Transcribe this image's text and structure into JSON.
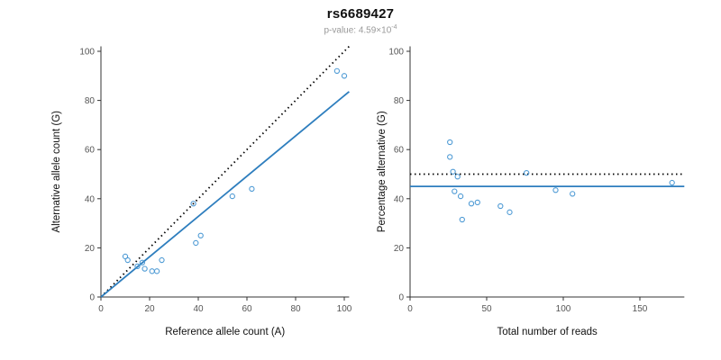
{
  "header": {
    "title": "rs6689427",
    "p_label": "p-value: 4.59×10",
    "p_exponent": "-4"
  },
  "colors": {
    "axis": "#333333",
    "point": "#4f9bd5",
    "fit_line": "#2e7ebe",
    "reference_line": "#000000"
  },
  "chart_data": [
    {
      "type": "scatter",
      "xlabel": "Reference allele count (A)",
      "ylabel": "Alternative allele count (G)",
      "xlim": [
        0,
        102
      ],
      "ylim": [
        0,
        102
      ],
      "xticks": [
        0,
        20,
        40,
        60,
        80,
        100
      ],
      "yticks": [
        0,
        20,
        40,
        60,
        80,
        100
      ],
      "grid": false,
      "point_color": "#4f9bd5",
      "points": [
        [
          10,
          16.5
        ],
        [
          11,
          15
        ],
        [
          15,
          12.5
        ],
        [
          17,
          14
        ],
        [
          18,
          11.5
        ],
        [
          21,
          10.5
        ],
        [
          23,
          10.5
        ],
        [
          25,
          15
        ],
        [
          38,
          38
        ],
        [
          39,
          22
        ],
        [
          41,
          25
        ],
        [
          54,
          41
        ],
        [
          62,
          44
        ],
        [
          97,
          92
        ],
        [
          100,
          90
        ]
      ],
      "lines": [
        {
          "name": "identity",
          "style": "dotted",
          "color": "#000000",
          "from": [
            0,
            0
          ],
          "to": [
            102,
            102
          ]
        },
        {
          "name": "fit",
          "style": "solid",
          "color": "#2e7ebe",
          "from": [
            0,
            0
          ],
          "to": [
            102,
            83.6
          ]
        }
      ]
    },
    {
      "type": "scatter",
      "xlabel": "Total number of reads",
      "ylabel": "Percentage alternative (G)",
      "xlim": [
        0,
        179
      ],
      "ylim": [
        0,
        102
      ],
      "xticks": [
        0,
        50,
        100,
        150
      ],
      "yticks": [
        0,
        20,
        40,
        60,
        80,
        100
      ],
      "grid": false,
      "point_color": "#4f9bd5",
      "points": [
        [
          26,
          63
        ],
        [
          26,
          57
        ],
        [
          28,
          51
        ],
        [
          31,
          49
        ],
        [
          29,
          43
        ],
        [
          33,
          41
        ],
        [
          34,
          31.5
        ],
        [
          40,
          38
        ],
        [
          44,
          38.5
        ],
        [
          59,
          37
        ],
        [
          65,
          34.5
        ],
        [
          76,
          50.5
        ],
        [
          95,
          43.5
        ],
        [
          106,
          42
        ],
        [
          171,
          46.5
        ]
      ],
      "lines": [
        {
          "name": "expected-50pct",
          "style": "dotted",
          "color": "#000000",
          "y": 50
        },
        {
          "name": "observed-mean",
          "style": "solid",
          "color": "#2e7ebe",
          "y": 45
        }
      ]
    }
  ]
}
